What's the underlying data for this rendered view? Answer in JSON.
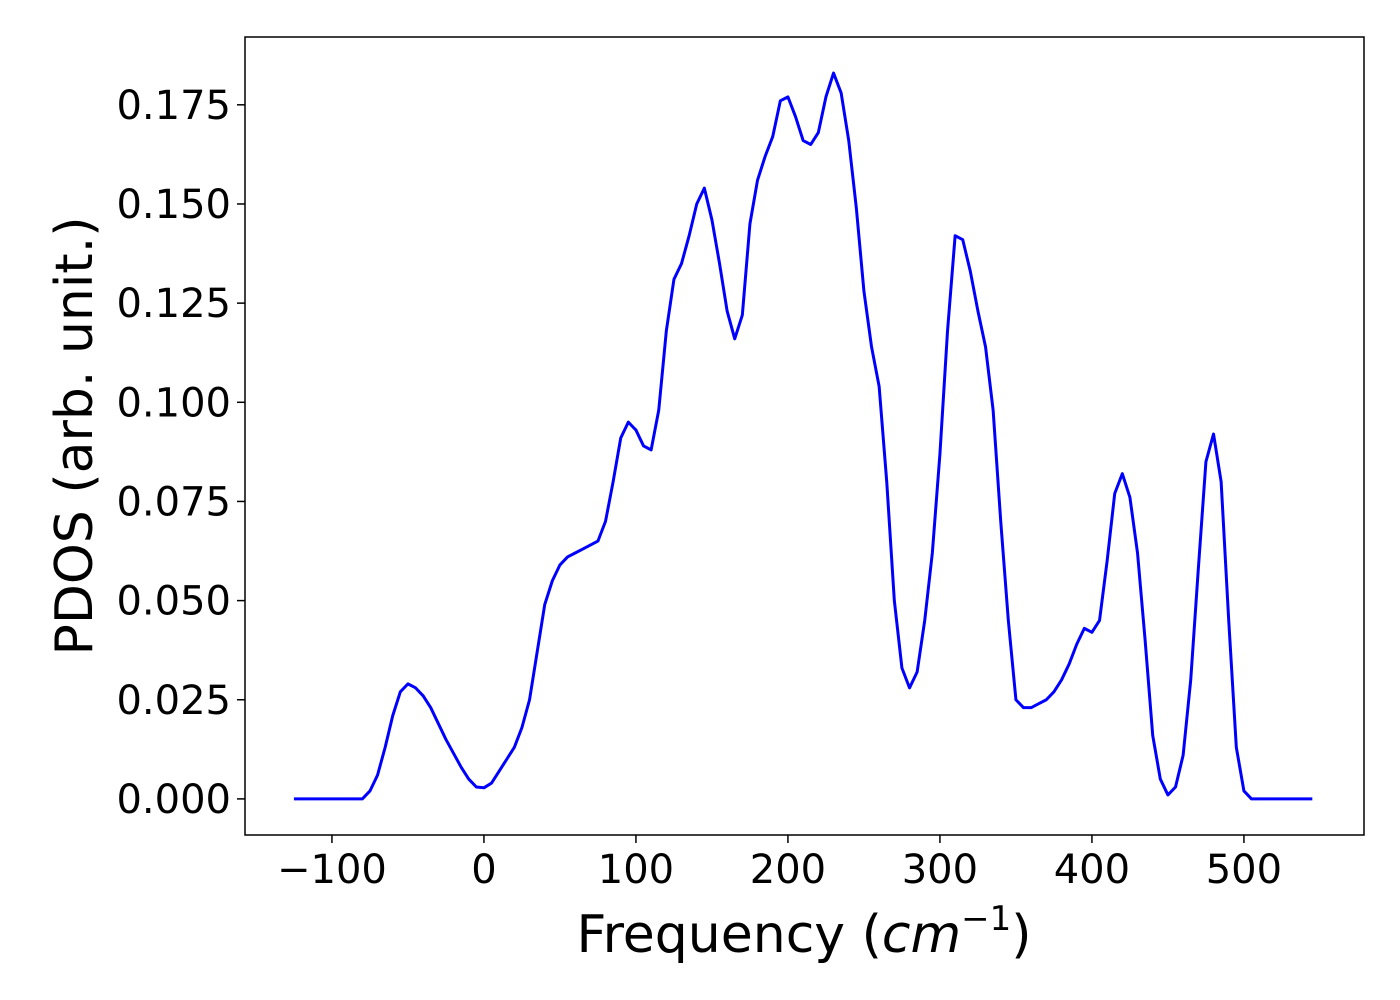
{
  "chart_data": {
    "type": "line",
    "xlabel": [
      "Frequency (",
      "cm",
      "−1",
      ")"
    ],
    "ylabel": "PDOS (arb. unit.)",
    "xlim": [
      -157.2,
      579
    ],
    "ylim": [
      -0.0091,
      0.1921
    ],
    "xticks": [
      {
        "value": -100,
        "label": "−100"
      },
      0,
      100,
      200,
      300,
      400,
      500
    ],
    "yticks": [
      {
        "value": 0,
        "label": "0.000"
      },
      {
        "value": 0.025,
        "label": "0.025"
      },
      {
        "value": 0.05,
        "label": "0.050"
      },
      {
        "value": 0.075,
        "label": "0.075"
      },
      {
        "value": 0.1,
        "label": "0.100"
      },
      {
        "value": 0.125,
        "label": "0.125"
      },
      {
        "value": 0.15,
        "label": "0.150"
      },
      {
        "value": 0.175,
        "label": "0.175"
      }
    ],
    "grid": false,
    "x": [
      -125,
      -80,
      -75,
      -70,
      -65,
      -60,
      -55,
      -50,
      -45,
      -40,
      -35,
      -30,
      -25,
      -20,
      -15,
      -10,
      -5,
      0,
      5,
      10,
      15,
      20,
      25,
      30,
      35,
      40,
      45,
      50,
      55,
      60,
      65,
      70,
      75,
      80,
      85,
      90,
      95,
      100,
      105,
      110,
      115,
      120,
      125,
      130,
      135,
      140,
      145,
      150,
      155,
      160,
      165,
      170,
      175,
      180,
      185,
      190,
      195,
      200,
      205,
      210,
      215,
      220,
      225,
      230,
      235,
      240,
      245,
      250,
      255,
      260,
      265,
      270,
      275,
      280,
      285,
      290,
      295,
      300,
      305,
      310,
      315,
      320,
      325,
      330,
      335,
      340,
      345,
      350,
      355,
      360,
      365,
      370,
      375,
      380,
      385,
      390,
      395,
      400,
      405,
      410,
      415,
      420,
      425,
      430,
      435,
      440,
      445,
      450,
      455,
      460,
      465,
      470,
      475,
      480,
      485,
      490,
      495,
      500,
      505,
      510,
      545
    ],
    "series": [
      {
        "color": "#0000ff",
        "values": [
          0,
          0,
          0.002,
          0.006,
          0.013,
          0.021,
          0.027,
          0.029,
          0.028,
          0.026,
          0.023,
          0.019,
          0.015,
          0.0115,
          0.008,
          0.005,
          0.003,
          0.0028,
          0.004,
          0.007,
          0.01,
          0.013,
          0.018,
          0.025,
          0.037,
          0.049,
          0.055,
          0.059,
          0.061,
          0.062,
          0.063,
          0.064,
          0.065,
          0.07,
          0.08,
          0.091,
          0.095,
          0.093,
          0.089,
          0.088,
          0.098,
          0.118,
          0.131,
          0.135,
          0.142,
          0.15,
          0.154,
          0.146,
          0.135,
          0.123,
          0.116,
          0.122,
          0.145,
          0.156,
          0.162,
          0.167,
          0.176,
          0.177,
          0.172,
          0.166,
          0.165,
          0.168,
          0.177,
          0.183,
          0.178,
          0.166,
          0.149,
          0.128,
          0.114,
          0.104,
          0.08,
          0.05,
          0.033,
          0.028,
          0.032,
          0.045,
          0.062,
          0.087,
          0.118,
          0.142,
          0.141,
          0.133,
          0.123,
          0.114,
          0.098,
          0.07,
          0.045,
          0.025,
          0.023,
          0.023,
          0.024,
          0.025,
          0.027,
          0.03,
          0.034,
          0.039,
          0.043,
          0.042,
          0.045,
          0.06,
          0.077,
          0.082,
          0.076,
          0.062,
          0.04,
          0.016,
          0.005,
          0.001,
          0.003,
          0.011,
          0.03,
          0.058,
          0.085,
          0.092,
          0.08,
          0.045,
          0.013,
          0.002,
          0,
          0,
          0
        ]
      }
    ]
  }
}
